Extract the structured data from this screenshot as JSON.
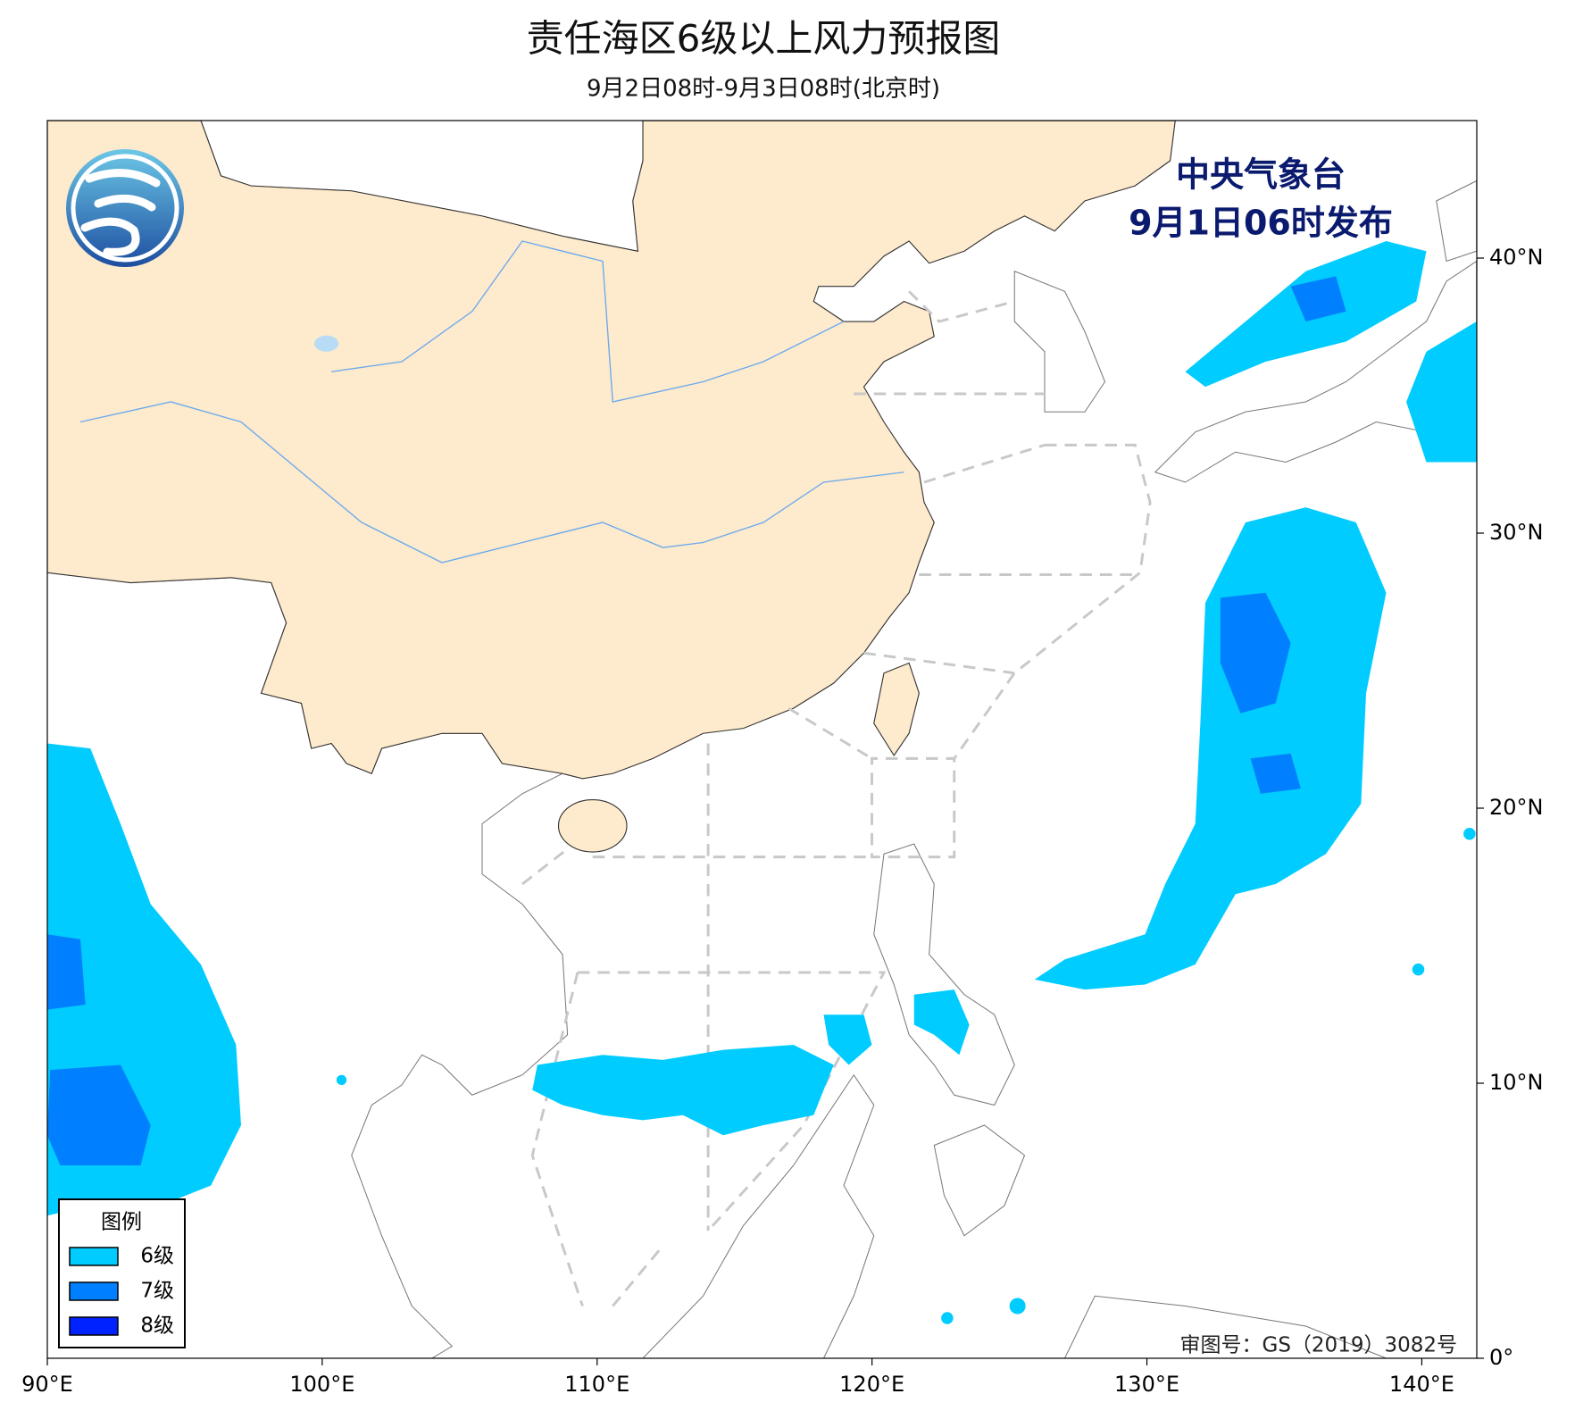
{
  "title": "责任海区6级以上风力预报图",
  "subtitle": "9月2日08时-9月3日08时(北京时)",
  "issuer": "中央气象台",
  "issued": "9月1日06时发布",
  "approval": "审图号：GS（2019）3082号",
  "legend": {
    "title": "图例",
    "items": [
      {
        "name": "6级",
        "color": "#00ccff"
      },
      {
        "name": "7级",
        "color": "#0080ff"
      },
      {
        "name": "8级",
        "color": "#0022ff"
      }
    ]
  },
  "map": {
    "xlim": [
      90,
      142
    ],
    "ylim": [
      0,
      45
    ],
    "xticks": [
      {
        "value": 90,
        "label": "90°E"
      },
      {
        "value": 100,
        "label": "100°E"
      },
      {
        "value": 110,
        "label": "110°E"
      },
      {
        "value": 120,
        "label": "120°E"
      },
      {
        "value": 130,
        "label": "130°E"
      },
      {
        "value": 140,
        "label": "140°E"
      }
    ],
    "yticks": [
      {
        "value": 0,
        "label": "0°"
      },
      {
        "value": 10,
        "label": "10°N"
      },
      {
        "value": 20,
        "label": "20°N"
      },
      {
        "value": 30,
        "label": "30°N"
      },
      {
        "value": 40,
        "label": "40°N"
      }
    ]
  }
}
